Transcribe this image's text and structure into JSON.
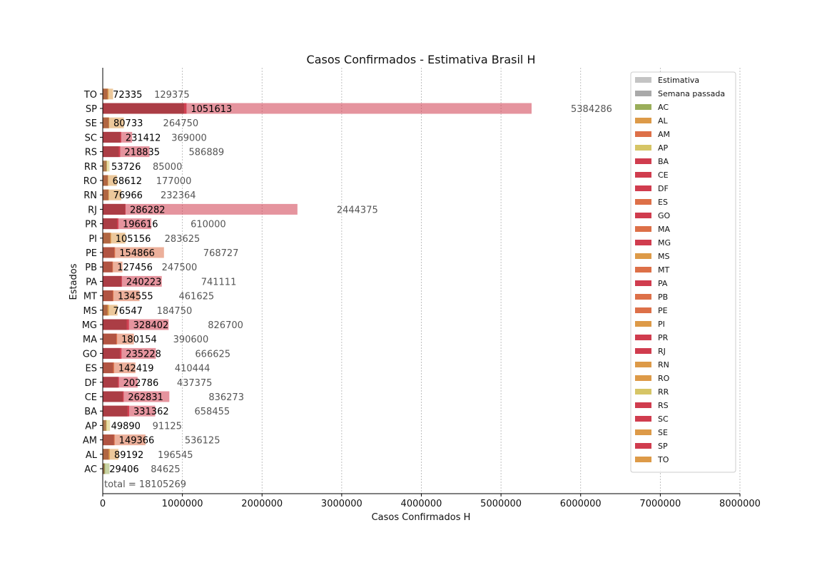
{
  "chart_data": {
    "type": "bar",
    "orientation": "horizontal",
    "title": "Casos Confirmados - Estimativa Brasil H",
    "xlabel": "Casos Confirmados H",
    "ylabel": "Estados",
    "xlim": [
      0,
      8000000
    ],
    "x_ticks": [
      "0",
      "1000000",
      "2000000",
      "3000000",
      "4000000",
      "5000000",
      "6000000",
      "7000000",
      "8000000"
    ],
    "grid": "x-dashed",
    "legend_position": "top-right",
    "total_label": "total = 18105269",
    "series_names": [
      "Estimativa",
      "Semana passada"
    ],
    "colors": {
      "estimativa_legend": "#c4c4c4",
      "semana_legend": "#a9a9a9",
      "green": "#9aae5a",
      "orange": "#dd9a48",
      "red_orange": "#dd7048",
      "yellow": "#d6c566",
      "red": "#d03c4e",
      "last_week_overlay": "#8c3a3a"
    },
    "states": [
      {
        "name": "AC",
        "current": 29406,
        "estimate": 84625,
        "last_week": 22000,
        "color": "#9aae5a"
      },
      {
        "name": "AL",
        "current": 89192,
        "estimate": 196545,
        "last_week": 75000,
        "color": "#dd9a48"
      },
      {
        "name": "AM",
        "current": 149366,
        "estimate": 536125,
        "last_week": 140000,
        "color": "#dd7048"
      },
      {
        "name": "AP",
        "current": 49890,
        "estimate": 91125,
        "last_week": 42000,
        "color": "#d6c566"
      },
      {
        "name": "BA",
        "current": 331362,
        "estimate": 658455,
        "last_week": 310000,
        "color": "#d03c4e"
      },
      {
        "name": "CE",
        "current": 262831,
        "estimate": 836273,
        "last_week": 250000,
        "color": "#d03c4e"
      },
      {
        "name": "DF",
        "current": 202786,
        "estimate": 437375,
        "last_week": 190000,
        "color": "#d03c4e"
      },
      {
        "name": "ES",
        "current": 142419,
        "estimate": 410444,
        "last_week": 130000,
        "color": "#dd7048"
      },
      {
        "name": "GO",
        "current": 235228,
        "estimate": 666625,
        "last_week": 215000,
        "color": "#d03c4e"
      },
      {
        "name": "MA",
        "current": 180154,
        "estimate": 390600,
        "last_week": 170000,
        "color": "#dd7048"
      },
      {
        "name": "MG",
        "current": 328402,
        "estimate": 826700,
        "last_week": 300000,
        "color": "#d03c4e"
      },
      {
        "name": "MS",
        "current": 76547,
        "estimate": 184750,
        "last_week": 60000,
        "color": "#dd9a48"
      },
      {
        "name": "MT",
        "current": 134555,
        "estimate": 461625,
        "last_week": 125000,
        "color": "#dd7048"
      },
      {
        "name": "PA",
        "current": 240223,
        "estimate": 741111,
        "last_week": 230000,
        "color": "#d03c4e"
      },
      {
        "name": "PB",
        "current": 127456,
        "estimate": 247500,
        "last_week": 120000,
        "color": "#dd7048"
      },
      {
        "name": "PE",
        "current": 154866,
        "estimate": 768727,
        "last_week": 145000,
        "color": "#dd7048"
      },
      {
        "name": "PI",
        "current": 105156,
        "estimate": 283625,
        "last_week": 95000,
        "color": "#dd9a48"
      },
      {
        "name": "PR",
        "current": 196616,
        "estimate": 610000,
        "last_week": 180000,
        "color": "#d03c4e"
      },
      {
        "name": "RJ",
        "current": 286282,
        "estimate": 2444375,
        "last_week": 280000,
        "color": "#d03c4e"
      },
      {
        "name": "RN",
        "current": 76966,
        "estimate": 232364,
        "last_week": 70000,
        "color": "#dd9a48"
      },
      {
        "name": "RO",
        "current": 68612,
        "estimate": 177000,
        "last_week": 62000,
        "color": "#dd9a48"
      },
      {
        "name": "RR",
        "current": 53726,
        "estimate": 85000,
        "last_week": 48000,
        "color": "#d6c566"
      },
      {
        "name": "RS",
        "current": 218835,
        "estimate": 586889,
        "last_week": 200000,
        "color": "#d03c4e"
      },
      {
        "name": "SC",
        "current": 231412,
        "estimate": 369000,
        "last_week": 220000,
        "color": "#d03c4e"
      },
      {
        "name": "SE",
        "current": 80733,
        "estimate": 264750,
        "last_week": 75000,
        "color": "#dd9a48"
      },
      {
        "name": "SP",
        "current": 1051613,
        "estimate": 5384286,
        "last_week": 1020000,
        "color": "#d03c4e"
      },
      {
        "name": "TO",
        "current": 72335,
        "estimate": 129375,
        "last_week": 60000,
        "color": "#dd9a48"
      }
    ]
  }
}
